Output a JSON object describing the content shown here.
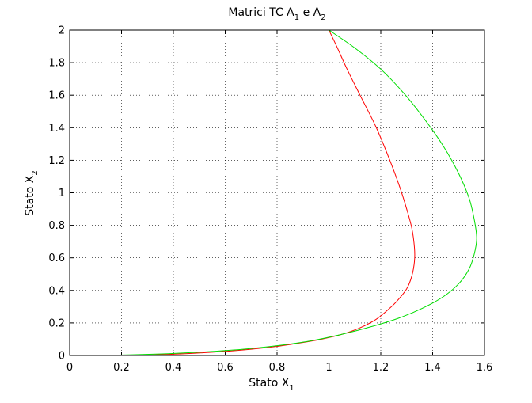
{
  "chart_data": {
    "type": "line",
    "title": "Matrici TC A_1 e A_2",
    "title_parts": {
      "main": "Matrici TC A",
      "sub1": "1",
      "mid": " e A",
      "sub2": "2"
    },
    "xlabel": "Stato X_1",
    "xlabel_parts": {
      "main": "Stato X",
      "sub": "1"
    },
    "ylabel": "Stato X_2",
    "ylabel_parts": {
      "main": "Stato X",
      "sub": "2"
    },
    "xlim": [
      0,
      1.6
    ],
    "ylim": [
      0,
      2
    ],
    "xticks": [
      0,
      0.2,
      0.4,
      0.6,
      0.8,
      1,
      1.2,
      1.4,
      1.6
    ],
    "xtick_labels": [
      "0",
      "0.2",
      "0.4",
      "0.6",
      "0.8",
      "1",
      "1.2",
      "1.4",
      "1.6"
    ],
    "yticks": [
      0,
      0.2,
      0.4,
      0.6,
      0.8,
      1,
      1.2,
      1.4,
      1.6,
      1.8,
      2
    ],
    "ytick_labels": [
      "0",
      "0.2",
      "0.4",
      "0.6",
      "0.8",
      "1",
      "1.2",
      "1.4",
      "1.6",
      "1.8",
      "2"
    ],
    "grid": true,
    "series": [
      {
        "color": "#ff0000",
        "x": [
          1.0,
          1.03,
          1.07,
          1.12,
          1.18,
          1.23,
          1.27,
          1.3,
          1.32,
          1.33,
          1.33,
          1.32,
          1.3,
          1.26,
          1.22,
          1.18,
          1.12,
          1.05,
          0.97,
          0.88,
          0.78,
          0.67,
          0.55,
          0.43,
          0.31,
          0.23
        ],
        "y": [
          2.0,
          1.9,
          1.76,
          1.6,
          1.41,
          1.22,
          1.05,
          0.9,
          0.78,
          0.66,
          0.58,
          0.49,
          0.41,
          0.33,
          0.27,
          0.22,
          0.17,
          0.13,
          0.1,
          0.075,
          0.052,
          0.034,
          0.02,
          0.01,
          0.004,
          0.002
        ]
      },
      {
        "color": "#00dd00",
        "x": [
          1.0,
          1.1,
          1.2,
          1.29,
          1.37,
          1.44,
          1.5,
          1.54,
          1.56,
          1.57,
          1.56,
          1.54,
          1.5,
          1.44,
          1.36,
          1.27,
          1.17,
          1.05,
          0.93,
          0.8,
          0.66,
          0.52,
          0.38,
          0.24,
          0.1,
          0.0
        ],
        "y": [
          2.0,
          1.89,
          1.76,
          1.61,
          1.45,
          1.29,
          1.12,
          0.97,
          0.84,
          0.72,
          0.62,
          0.53,
          0.44,
          0.36,
          0.29,
          0.23,
          0.18,
          0.13,
          0.09,
          0.06,
          0.037,
          0.022,
          0.011,
          0.004,
          0.001,
          0.0
        ]
      }
    ]
  }
}
